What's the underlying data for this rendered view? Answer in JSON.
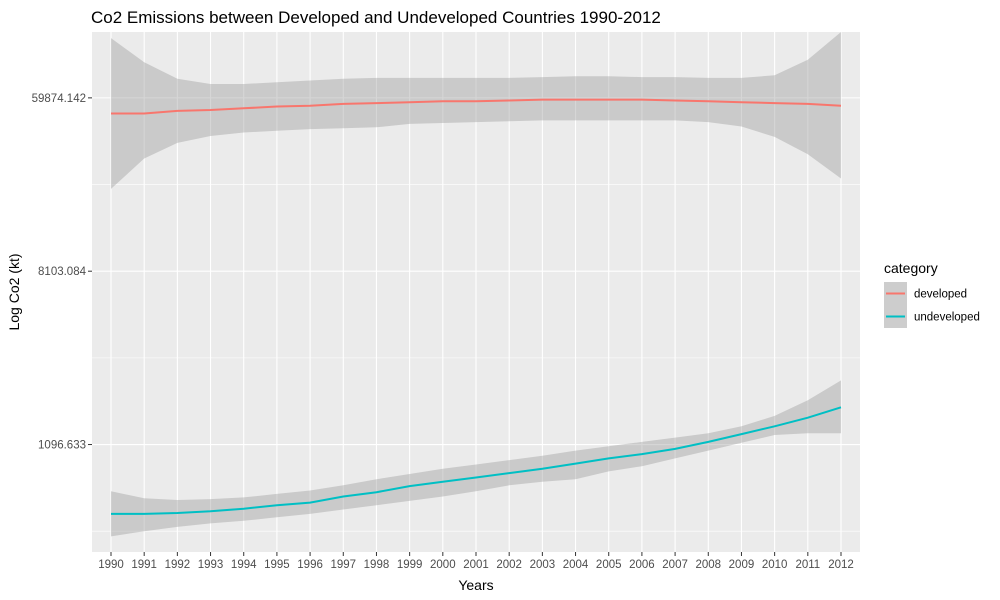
{
  "chart_data": {
    "type": "line",
    "title": "Co2 Emissions between Developed and Undeveloped Countries 1990-2012",
    "xlabel": "Years",
    "ylabel": "Log Co2 (kt)",
    "x": [
      1990,
      1991,
      1992,
      1993,
      1994,
      1995,
      1996,
      1997,
      1998,
      1999,
      2000,
      2001,
      2002,
      2003,
      2004,
      2005,
      2006,
      2007,
      2008,
      2009,
      2010,
      2011,
      2012
    ],
    "x_tick_labels": [
      "1990",
      "1991",
      "1992",
      "1993",
      "1994",
      "1995",
      "1996",
      "1997",
      "1998",
      "1999",
      "2000",
      "2001",
      "2002",
      "2003",
      "2004",
      "2005",
      "2006",
      "2007",
      "2008",
      "2009",
      "2010",
      "2011",
      "2012"
    ],
    "y_scale": "log",
    "y_ticks": [
      1096.633,
      8103.084,
      59874.142
    ],
    "y_tick_labels": [
      "1096.633",
      "8103.084",
      "59874.142"
    ],
    "ylim_ln": [
      5.76,
      11.76
    ],
    "grid": true,
    "legend": {
      "title": "category",
      "position": "right"
    },
    "series": [
      {
        "name": "developed",
        "color": "#F8766D",
        "ln_values": [
          10.82,
          10.82,
          10.85,
          10.86,
          10.88,
          10.9,
          10.91,
          10.93,
          10.94,
          10.95,
          10.96,
          10.96,
          10.97,
          10.98,
          10.98,
          10.98,
          10.98,
          10.97,
          10.96,
          10.95,
          10.94,
          10.93,
          10.91
        ],
        "ln_lower": [
          9.95,
          10.3,
          10.48,
          10.56,
          10.6,
          10.62,
          10.64,
          10.65,
          10.66,
          10.7,
          10.71,
          10.72,
          10.73,
          10.74,
          10.74,
          10.74,
          10.74,
          10.74,
          10.72,
          10.67,
          10.55,
          10.35,
          10.07
        ],
        "ln_upper": [
          11.69,
          11.41,
          11.22,
          11.16,
          11.16,
          11.18,
          11.2,
          11.22,
          11.23,
          11.23,
          11.23,
          11.23,
          11.23,
          11.24,
          11.25,
          11.25,
          11.24,
          11.24,
          11.23,
          11.23,
          11.26,
          11.44,
          11.76
        ]
      },
      {
        "name": "undeveloped",
        "color": "#00BFC4",
        "ln_values": [
          6.2,
          6.2,
          6.21,
          6.23,
          6.26,
          6.3,
          6.33,
          6.4,
          6.45,
          6.52,
          6.57,
          6.62,
          6.67,
          6.72,
          6.78,
          6.84,
          6.89,
          6.95,
          7.03,
          7.12,
          7.21,
          7.31,
          7.43
        ],
        "ln_lower": [
          5.94,
          6.0,
          6.05,
          6.09,
          6.12,
          6.16,
          6.2,
          6.25,
          6.3,
          6.35,
          6.4,
          6.46,
          6.53,
          6.57,
          6.6,
          6.69,
          6.75,
          6.84,
          6.93,
          7.02,
          7.11,
          7.13,
          7.13
        ],
        "ln_upper": [
          6.46,
          6.38,
          6.36,
          6.37,
          6.39,
          6.43,
          6.47,
          6.53,
          6.6,
          6.66,
          6.72,
          6.77,
          6.82,
          6.87,
          6.93,
          6.98,
          7.03,
          7.08,
          7.13,
          7.21,
          7.33,
          7.51,
          7.74
        ]
      }
    ]
  }
}
